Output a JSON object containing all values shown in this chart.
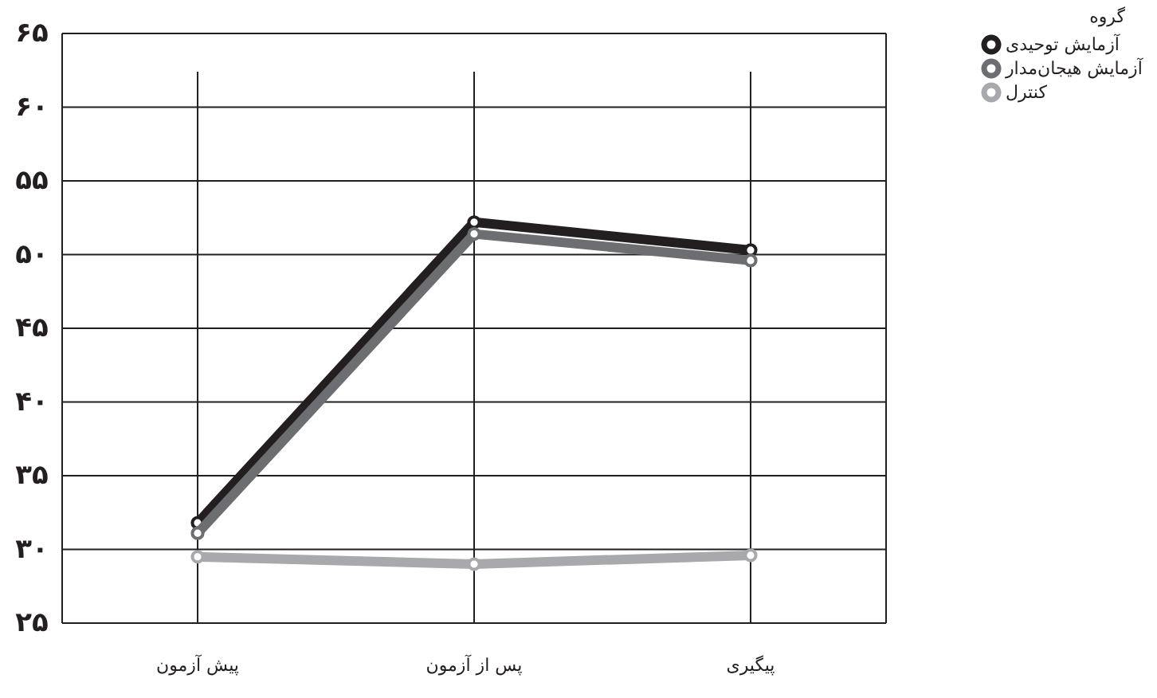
{
  "chart_data": {
    "type": "line",
    "categories": [
      "پیش آزمون",
      "پس از آزمون",
      "پیگیری"
    ],
    "series": [
      {
        "name": "آزمایش توحیدی",
        "color": "#231f20",
        "values": [
          31.8,
          52.2,
          50.3
        ]
      },
      {
        "name": "آزمایش هیجان‌مدار",
        "color": "#6d6e71",
        "values": [
          31.1,
          51.4,
          49.6
        ]
      },
      {
        "name": "کنترل",
        "color": "#a7a9ac",
        "values": [
          29.5,
          29.0,
          29.6
        ]
      }
    ],
    "ylim": [
      25,
      65
    ],
    "yticks": [
      {
        "value": 25,
        "label": "۲۵"
      },
      {
        "value": 30,
        "label": "۳۰"
      },
      {
        "value": 35,
        "label": "۳۵"
      },
      {
        "value": 40,
        "label": "۴۰"
      },
      {
        "value": 45,
        "label": "۴۵"
      },
      {
        "value": 50,
        "label": "۵۰"
      },
      {
        "value": 55,
        "label": "۵۵"
      },
      {
        "value": 60,
        "label": "۶۰"
      },
      {
        "value": 65,
        "label": "۶۵"
      }
    ],
    "legend_title": "گروه",
    "legend": "top right",
    "grid": true,
    "marker": "circle",
    "line_style": "solid"
  }
}
